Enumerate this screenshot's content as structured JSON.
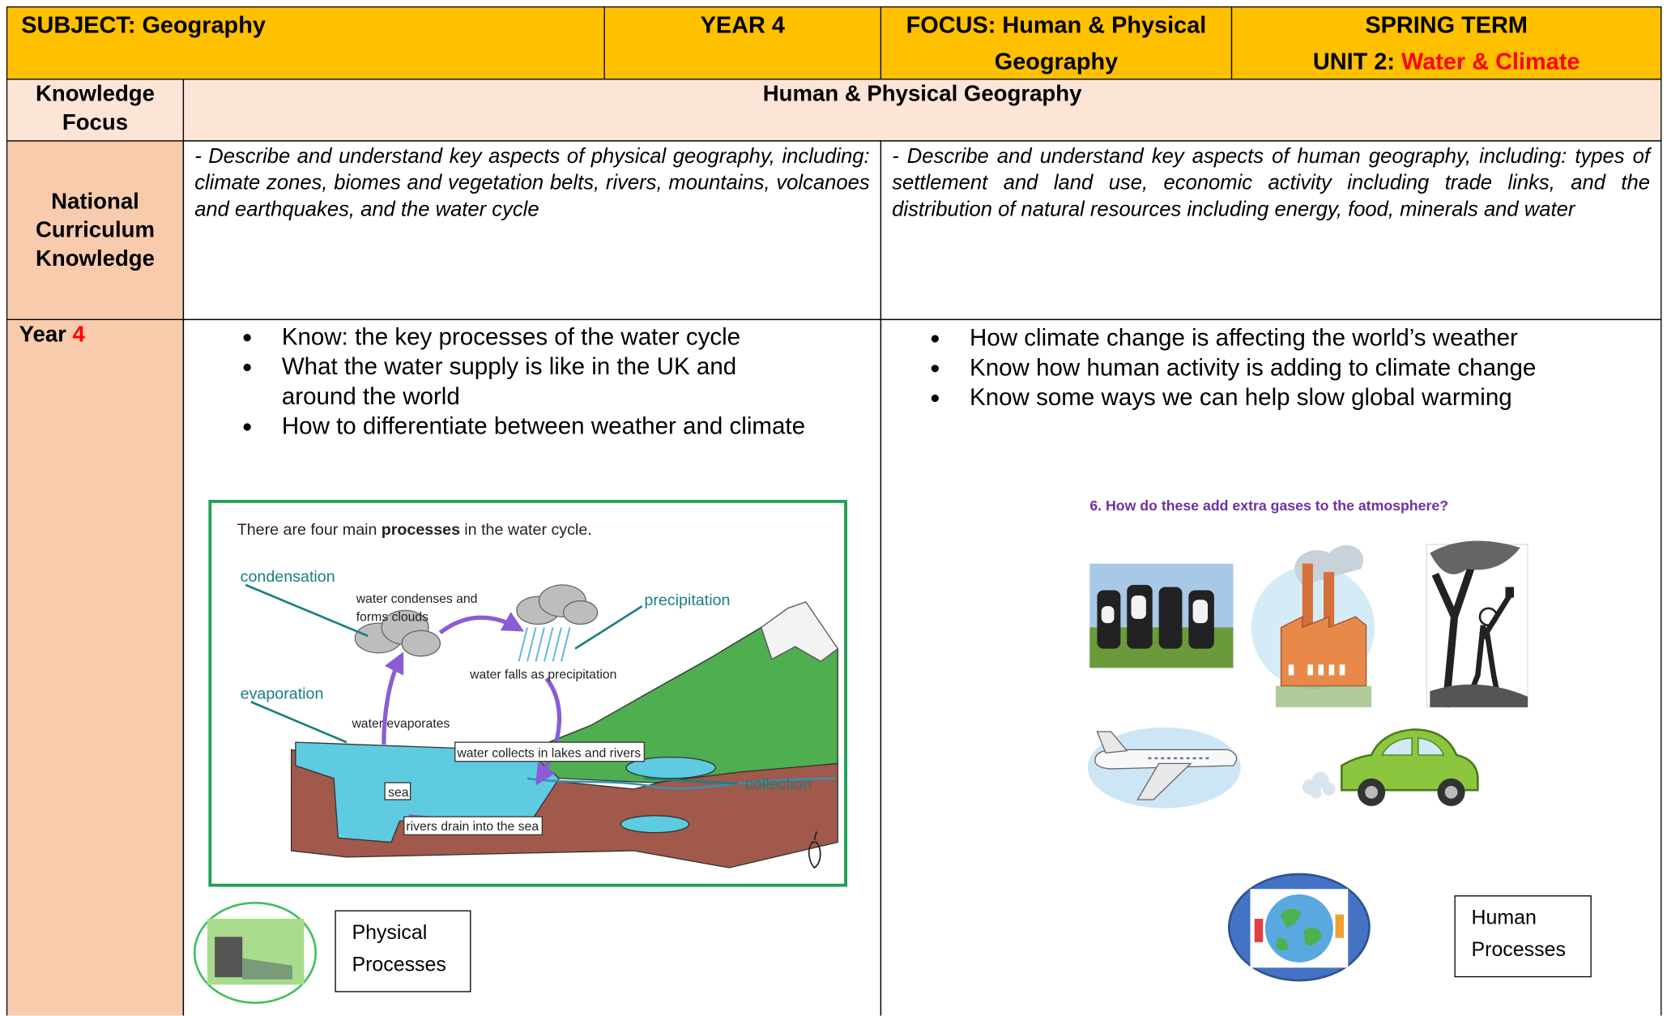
{
  "header": {
    "subject": "SUBJECT: Geography",
    "year": "YEAR 4",
    "focus": "FOCUS: Human & Physical Geography",
    "term": "SPRING TERM",
    "unit_prefix": "UNIT 2:",
    "unit_topic": "Water & Climate"
  },
  "knowledge_focus": {
    "label": "Knowledge Focus",
    "text": "Human & Physical Geography"
  },
  "national_curriculum": {
    "label": "National Curriculum Knowledge",
    "physical": "- Describe and understand key aspects of physical geography, including: climate zones, biomes and vegetation belts, rivers, mountains, volcanoes and earthquakes, and the water cycle",
    "human": "- Describe and understand key aspects of human geography, including: types of settlement and land use, economic activity including trade links, and the distribution of natural resources including energy, food, minerals and water"
  },
  "year_row": {
    "label": "Year",
    "year": "4",
    "physical_points": [
      "Know:  the key processes of the water cycle",
      "What the water supply is like in the UK and around the world",
      "How to differentiate between weather and climate"
    ],
    "human_points": [
      "How climate change is affecting the world’s weather",
      "Know how human activity is adding to climate change",
      "Know some ways we can help slow global warming"
    ]
  },
  "water_cycle": {
    "intro_start": "There are four main",
    "intro_bold": "processes",
    "intro_end": "in the water cycle.",
    "condensation": "condensation",
    "condenses_1": "water condenses and",
    "condenses_2": "forms clouds",
    "precipitation": "precipitation",
    "falls": "water falls as precipitation",
    "evaporation": "evaporation",
    "evaporates": "water evaporates",
    "collects": "water collects in lakes and rivers",
    "sea": "sea",
    "drain": "rivers drain into the sea",
    "collection": "collection"
  },
  "atmosphere": {
    "question": "6. How do these add extra gases to the atmosphere?"
  },
  "physical_box": "Physical Processes",
  "human_box": "Human Processes"
}
